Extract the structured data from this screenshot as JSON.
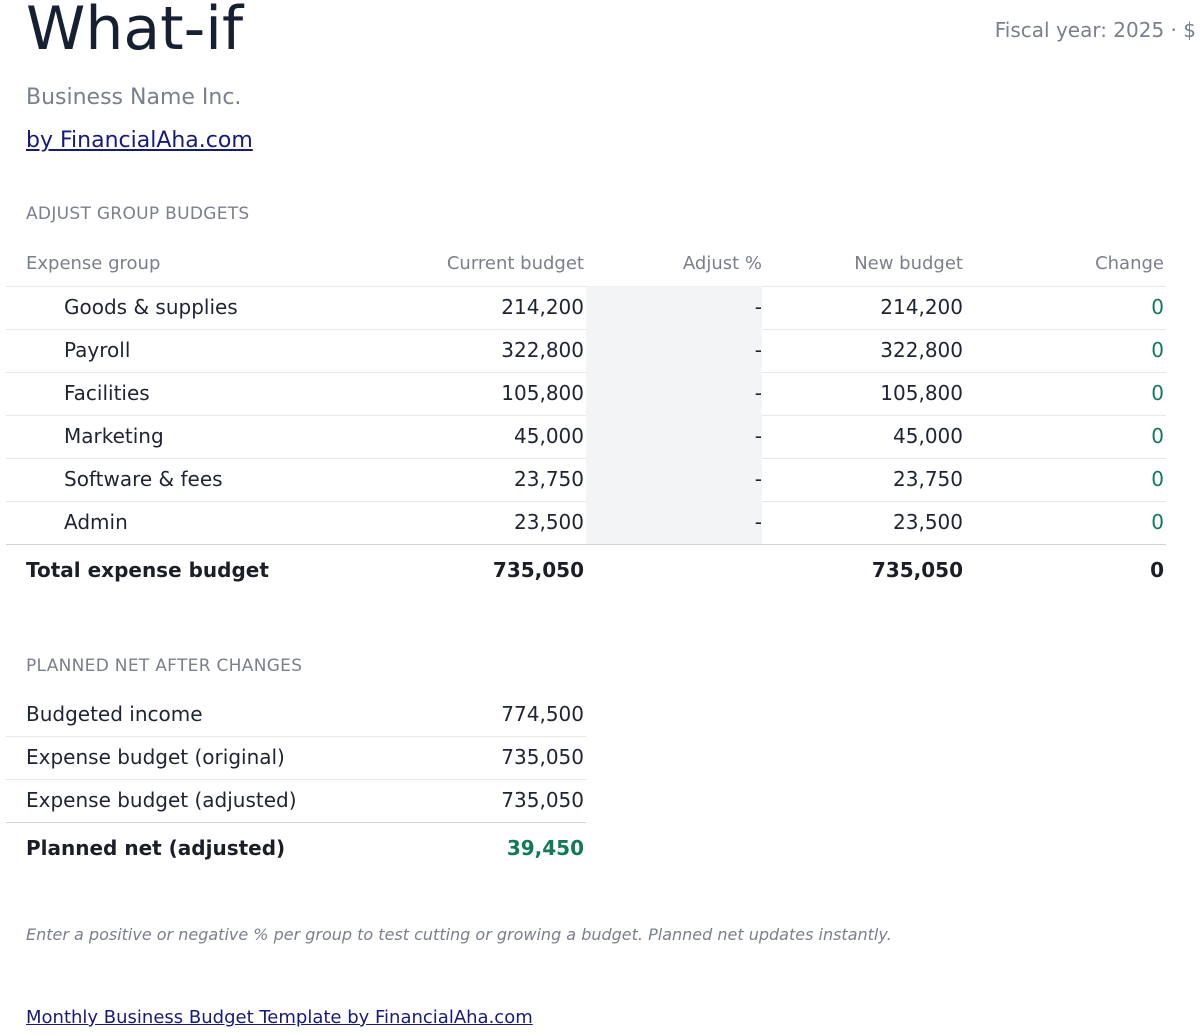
{
  "header": {
    "title": "What-if",
    "fiscal": "Fiscal year: 2025 · $",
    "business_name": "Business Name Inc.",
    "by_link": "by FinancialAha.com"
  },
  "adjust": {
    "section_label": "ADJUST GROUP BUDGETS",
    "columns": {
      "group": "Expense group",
      "current": "Current budget",
      "adjust": "Adjust %",
      "new": "New budget",
      "change": "Change"
    },
    "rows": [
      {
        "group": "Goods & supplies",
        "current": "214,200",
        "adjust": "-",
        "new": "214,200",
        "change": "0"
      },
      {
        "group": "Payroll",
        "current": "322,800",
        "adjust": "-",
        "new": "322,800",
        "change": "0"
      },
      {
        "group": "Facilities",
        "current": "105,800",
        "adjust": "-",
        "new": "105,800",
        "change": "0"
      },
      {
        "group": "Marketing",
        "current": "45,000",
        "adjust": "-",
        "new": "45,000",
        "change": "0"
      },
      {
        "group": "Software & fees",
        "current": "23,750",
        "adjust": "-",
        "new": "23,750",
        "change": "0"
      },
      {
        "group": "Admin",
        "current": "23,500",
        "adjust": "-",
        "new": "23,500",
        "change": "0"
      }
    ],
    "total": {
      "label": "Total expense budget",
      "current": "735,050",
      "new": "735,050",
      "change": "0"
    }
  },
  "net": {
    "section_label": "PLANNED NET AFTER CHANGES",
    "rows": [
      {
        "label": "Budgeted income",
        "value": "774,500"
      },
      {
        "label": "Expense budget (original)",
        "value": "735,050"
      },
      {
        "label": "Expense budget (adjusted)",
        "value": "735,050"
      }
    ],
    "total": {
      "label": "Planned net (adjusted)",
      "value": "39,450"
    }
  },
  "note": "Enter a positive or negative % per group to test cutting or growing a budget. Planned net updates instantly.",
  "footer_link": "Monthly Business Budget Template by FinancialAha.com",
  "colors": {
    "positive": "#117a58",
    "link": "#161a7a",
    "muted": "#7a7f8c"
  }
}
